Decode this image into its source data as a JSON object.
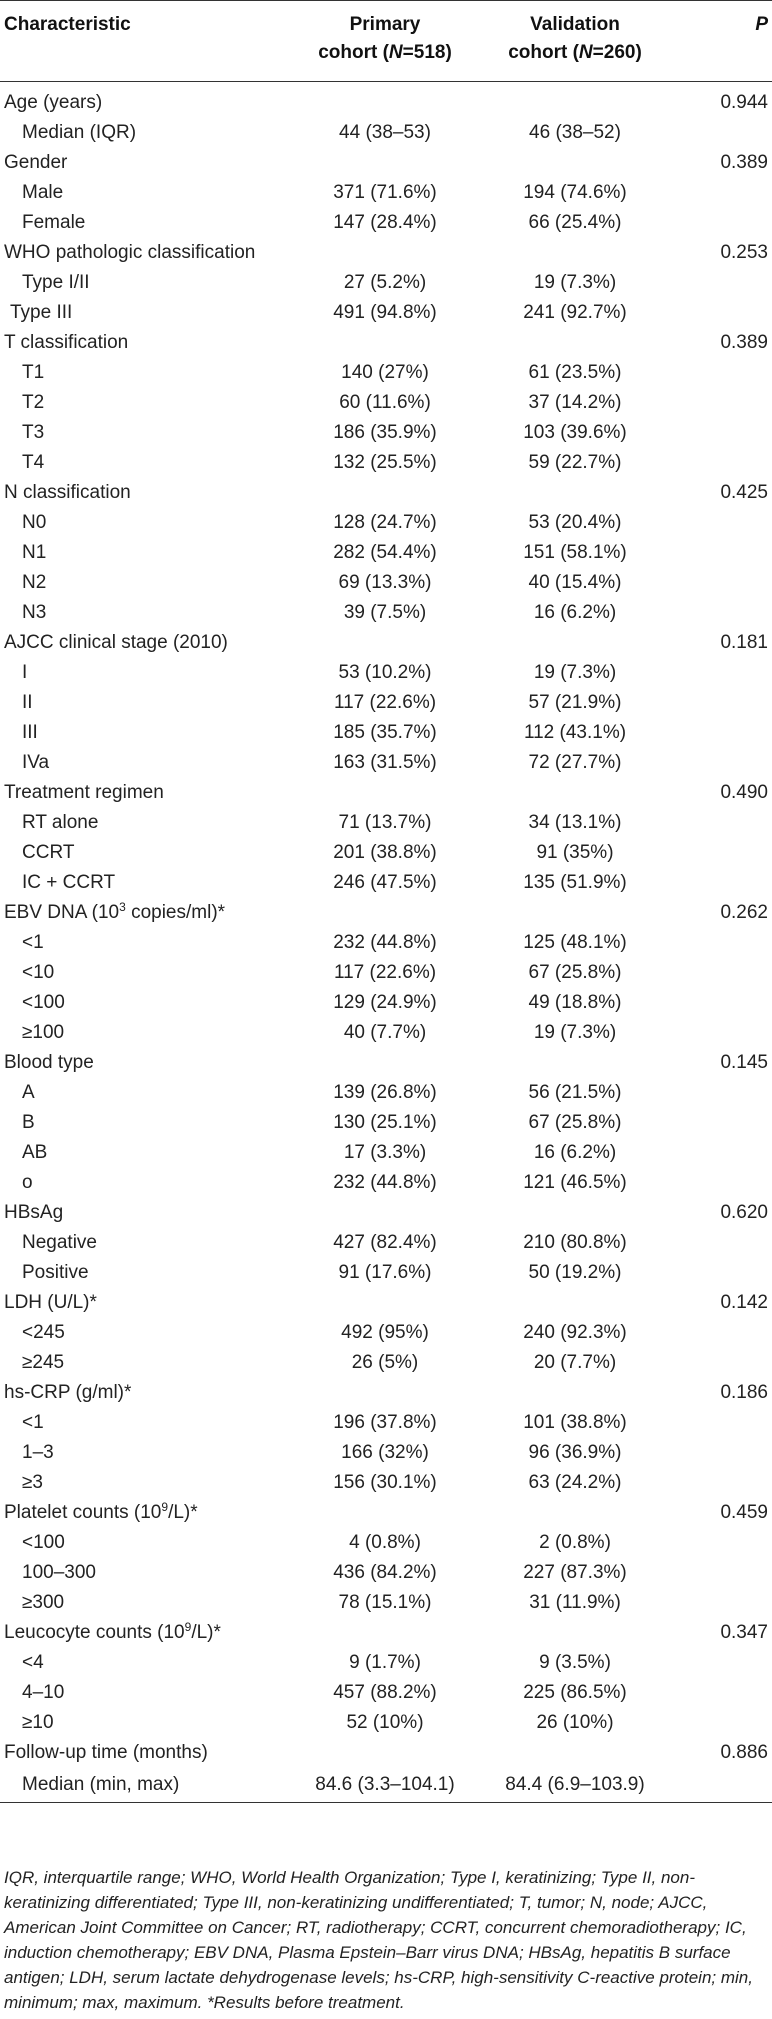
{
  "header": {
    "col1": "Characteristic",
    "col2_line1": "Primary",
    "col2_line2_pre": "cohort (",
    "col2_line2_n": "N",
    "col2_line2_post": "=518)",
    "col3_line1": "Validation",
    "col3_line2_pre": "cohort (",
    "col3_line2_n": "N",
    "col3_line2_post": "=260)",
    "col4": "P"
  },
  "rows": [
    {
      "label": "Age (years)",
      "primary": "",
      "validation": "",
      "p": "0.944",
      "level": 0
    },
    {
      "label": "Median (IQR)",
      "primary": "44 (38–53)",
      "validation": "46 (38–52)",
      "p": "",
      "level": 1
    },
    {
      "label": "Gender",
      "primary": "",
      "validation": "",
      "p": "0.389",
      "level": 0
    },
    {
      "label": "Male",
      "primary": "371 (71.6%)",
      "validation": "194 (74.6%)",
      "p": "",
      "level": 1
    },
    {
      "label": "Female",
      "primary": "147 (28.4%)",
      "validation": "66 (25.4%)",
      "p": "",
      "level": 1
    },
    {
      "label": "WHO pathologic classification",
      "primary": "",
      "validation": "",
      "p": "0.253",
      "level": 0
    },
    {
      "label": "Type I/II",
      "primary": "27 (5.2%)",
      "validation": "19 (7.3%)",
      "p": "",
      "level": 1
    },
    {
      "label": "Type III",
      "primary": "491 (94.8%)",
      "validation": "241 (92.7%)",
      "p": "",
      "level": 2
    },
    {
      "label": "T classification",
      "primary": "",
      "validation": "",
      "p": "0.389",
      "level": 0
    },
    {
      "label": "T1",
      "primary": "140 (27%)",
      "validation": "61 (23.5%)",
      "p": "",
      "level": 1
    },
    {
      "label": "T2",
      "primary": "60 (11.6%)",
      "validation": "37 (14.2%)",
      "p": "",
      "level": 1
    },
    {
      "label": "T3",
      "primary": "186 (35.9%)",
      "validation": "103 (39.6%)",
      "p": "",
      "level": 1
    },
    {
      "label": "T4",
      "primary": "132 (25.5%)",
      "validation": "59 (22.7%)",
      "p": "",
      "level": 1
    },
    {
      "label": "N classification",
      "primary": "",
      "validation": "",
      "p": "0.425",
      "level": 0
    },
    {
      "label": "N0",
      "primary": "128 (24.7%)",
      "validation": "53 (20.4%)",
      "p": "",
      "level": 1
    },
    {
      "label": "N1",
      "primary": "282 (54.4%)",
      "validation": "151 (58.1%)",
      "p": "",
      "level": 1
    },
    {
      "label": "N2",
      "primary": "69 (13.3%)",
      "validation": "40 (15.4%)",
      "p": "",
      "level": 1
    },
    {
      "label": "N3",
      "primary": "39 (7.5%)",
      "validation": "16 (6.2%)",
      "p": "",
      "level": 1
    },
    {
      "label": "AJCC clinical stage (2010)",
      "primary": "",
      "validation": "",
      "p": "0.181",
      "level": 0
    },
    {
      "label": "I",
      "primary": "53 (10.2%)",
      "validation": "19 (7.3%)",
      "p": "",
      "level": 1
    },
    {
      "label": "II",
      "primary": "117 (22.6%)",
      "validation": "57 (21.9%)",
      "p": "",
      "level": 1
    },
    {
      "label": "III",
      "primary": "185 (35.7%)",
      "validation": "112 (43.1%)",
      "p": "",
      "level": 1
    },
    {
      "label": "IVa",
      "primary": "163 (31.5%)",
      "validation": "72 (27.7%)",
      "p": "",
      "level": 1
    },
    {
      "label": "Treatment regimen",
      "primary": "",
      "validation": "",
      "p": "0.490",
      "level": 0
    },
    {
      "label": "RT alone",
      "primary": "71 (13.7%)",
      "validation": "34 (13.1%)",
      "p": "",
      "level": 1
    },
    {
      "label": "CCRT",
      "primary": "201 (38.8%)",
      "validation": "91 (35%)",
      "p": "",
      "level": 1
    },
    {
      "label": "IC + CCRT",
      "primary": "246 (47.5%)",
      "validation": "135 (51.9%)",
      "p": "",
      "level": 1
    },
    {
      "label": "EBV DNA (10",
      "label_sup": "3",
      "label_post": " copies/ml)*",
      "primary": "",
      "validation": "",
      "p": "0.262",
      "level": 0
    },
    {
      "label": "<1",
      "primary": "232 (44.8%)",
      "validation": "125 (48.1%)",
      "p": "",
      "level": 1
    },
    {
      "label": "<10",
      "primary": "117 (22.6%)",
      "validation": "67 (25.8%)",
      "p": "",
      "level": 1
    },
    {
      "label": "<100",
      "primary": "129 (24.9%)",
      "validation": "49 (18.8%)",
      "p": "",
      "level": 1
    },
    {
      "label": "≥100",
      "primary": "40 (7.7%)",
      "validation": "19 (7.3%)",
      "p": "",
      "level": 1
    },
    {
      "label": "Blood type",
      "primary": "",
      "validation": "",
      "p": "0.145",
      "level": 0
    },
    {
      "label": "A",
      "primary": "139 (26.8%)",
      "validation": "56 (21.5%)",
      "p": "",
      "level": 1
    },
    {
      "label": "B",
      "primary": "130 (25.1%)",
      "validation": "67 (25.8%)",
      "p": "",
      "level": 1
    },
    {
      "label": "AB",
      "primary": "17 (3.3%)",
      "validation": "16 (6.2%)",
      "p": "",
      "level": 1
    },
    {
      "label": "o",
      "primary": "232 (44.8%)",
      "validation": "121 (46.5%)",
      "p": "",
      "level": 1
    },
    {
      "label": "HBsAg",
      "primary": "",
      "validation": "",
      "p": "0.620",
      "level": 0
    },
    {
      "label": "Negative",
      "primary": "427 (82.4%)",
      "validation": "210 (80.8%)",
      "p": "",
      "level": 1
    },
    {
      "label": "Positive",
      "primary": "91 (17.6%)",
      "validation": "50 (19.2%)",
      "p": "",
      "level": 1
    },
    {
      "label": "LDH (U/L)*",
      "primary": "",
      "validation": "",
      "p": "0.142",
      "level": 0
    },
    {
      "label": "<245",
      "primary": "492 (95%)",
      "validation": "240 (92.3%)",
      "p": "",
      "level": 1
    },
    {
      "label": "≥245",
      "primary": "26 (5%)",
      "validation": "20 (7.7%)",
      "p": "",
      "level": 1
    },
    {
      "label": "hs-CRP (g/ml)*",
      "primary": "",
      "validation": "",
      "p": "0.186",
      "level": 0
    },
    {
      "label": "<1",
      "primary": "196 (37.8%)",
      "validation": "101 (38.8%)",
      "p": "",
      "level": 1
    },
    {
      "label": "1–3",
      "primary": "166 (32%)",
      "validation": "96 (36.9%)",
      "p": "",
      "level": 1
    },
    {
      "label": "≥3",
      "primary": "156 (30.1%)",
      "validation": "63 (24.2%)",
      "p": "",
      "level": 1
    },
    {
      "label": "Platelet counts (10",
      "label_sup": "9",
      "label_post": "/L)*",
      "primary": "",
      "validation": "",
      "p": "0.459",
      "level": 0
    },
    {
      "label": "<100",
      "primary": "4 (0.8%)",
      "validation": "2 (0.8%)",
      "p": "",
      "level": 1
    },
    {
      "label": "100–300",
      "primary": "436 (84.2%)",
      "validation": "227 (87.3%)",
      "p": "",
      "level": 1
    },
    {
      "label": "≥300",
      "primary": "78 (15.1%)",
      "validation": "31 (11.9%)",
      "p": "",
      "level": 1
    },
    {
      "label": "Leucocyte counts (10",
      "label_sup": "9",
      "label_post": "/L)*",
      "primary": "",
      "validation": "",
      "p": "0.347",
      "level": 0
    },
    {
      "label": "<4",
      "primary": "9 (1.7%)",
      "validation": "9 (3.5%)",
      "p": "",
      "level": 1
    },
    {
      "label": "4–10",
      "primary": "457 (88.2%)",
      "validation": "225 (86.5%)",
      "p": "",
      "level": 1
    },
    {
      "label": "≥10",
      "primary": "52 (10%)",
      "validation": "26 (10%)",
      "p": "",
      "level": 1
    },
    {
      "label": "Follow-up time (months)",
      "primary": "",
      "validation": "",
      "p": "0.886",
      "level": 0
    },
    {
      "label": "Median (min, max)",
      "primary": "84.6 (3.3–104.1)",
      "validation": "84.4 (6.9–103.9)",
      "p": "",
      "level": 1
    }
  ],
  "footnote": "IQR, interquartile range; WHO, World Health Organization; Type I, keratinizing; Type II, non-keratinizing differentiated; Type III, non-keratinizing undifferentiated; T, tumor; N, node; AJCC, American Joint Committee on Cancer; RT, radiotherapy; CCRT, concurrent chemoradiotherapy; IC, induction chemotherapy; EBV DNA, Plasma Epstein–Barr virus DNA; HBsAg, hepatitis B surface antigen; LDH, serum lactate dehydrogenase levels; hs-CRP, high-sensitivity C-reactive protein; min, minimum; max, maximum. *Results before treatment."
}
